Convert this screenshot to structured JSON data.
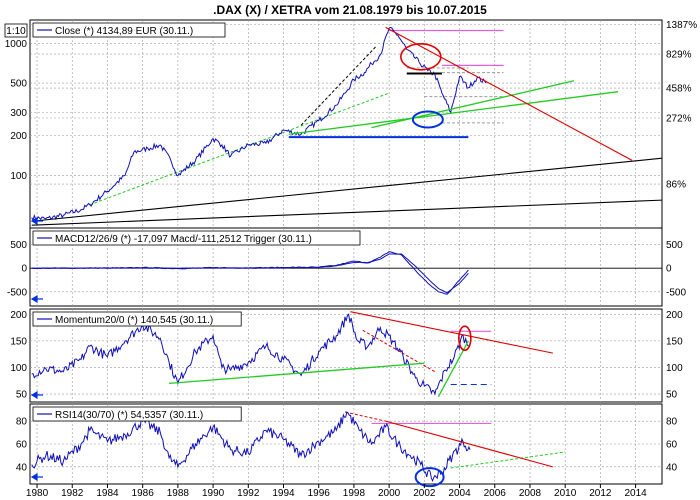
{
  "title": ".DAX (X) / XETRA vom 21.08.1979 bis 10.07.2015",
  "scale_label": "1:10",
  "colors": {
    "price": "#1010b8",
    "dashed_gray": "#9a9a9a",
    "red": "#e00000",
    "green": "#22cc22",
    "magenta": "#e060e0",
    "blue_mark": "#0030e0",
    "black": "#000000",
    "bg": "#ffffff"
  },
  "icons": {
    "panel_arrow": "arrow-left-icon",
    "circle_mark": "ellipse-annotation-icon"
  },
  "chart_data": [
    {
      "id": "price",
      "type": "line",
      "legend": "Close (*) 4134,89 EUR (30.11.)",
      "y_scale": "log",
      "ylim": [
        40,
        1500
      ],
      "xlim": [
        1979.6,
        2015.5
      ],
      "left_ticks": [
        {
          "v": 1000,
          "label": "1000"
        },
        {
          "v": 500,
          "label": "500"
        },
        {
          "v": 300,
          "label": "300"
        },
        {
          "v": 200,
          "label": "200"
        },
        {
          "v": 100,
          "label": "100"
        }
      ],
      "right_ticks": [
        {
          "v": 1387,
          "label": "1387%"
        },
        {
          "v": 829,
          "label": "829%"
        },
        {
          "v": 458,
          "label": "458%"
        },
        {
          "v": 272,
          "label": "272%"
        },
        {
          "v": 86,
          "label": "86%"
        }
      ],
      "x": [
        1979.7,
        1980.5,
        1981.5,
        1982.5,
        1983.0,
        1984.0,
        1985.0,
        1985.5,
        1986.3,
        1987.0,
        1987.6,
        1988.0,
        1989.0,
        1990.0,
        1990.5,
        1991.0,
        1992.0,
        1993.0,
        1994.0,
        1995.0,
        1996.0,
        1997.0,
        1997.5,
        1998.0,
        1998.6,
        1999.0,
        1999.5,
        2000.0,
        2000.5,
        2001.0,
        2001.7,
        2002.2,
        2002.6,
        2003.0,
        2003.5,
        2004.0,
        2004.5,
        2005.0,
        2005.5
      ],
      "y": [
        48,
        47,
        50,
        55,
        60,
        76,
        100,
        150,
        160,
        170,
        130,
        100,
        130,
        190,
        170,
        140,
        170,
        175,
        220,
        205,
        260,
        340,
        420,
        530,
        600,
        700,
        820,
        1300,
        1150,
        900,
        720,
        620,
        580,
        420,
        300,
        560,
        460,
        550,
        500
      ],
      "annotations": {
        "pink_h": [
          {
            "x0": 2000.0,
            "x1": 2006.5,
            "y": 1250
          },
          {
            "x0": 2003.0,
            "x1": 2006.5,
            "y": 680
          }
        ],
        "gray_h": [
          {
            "x0": 2001.0,
            "x1": 2004.5,
            "y": 650
          },
          {
            "x0": 2003.0,
            "x1": 2006.5,
            "y": 600
          },
          {
            "x0": 2002.0,
            "x1": 2006.5,
            "y": 395
          },
          {
            "x0": 2003.0,
            "x1": 2006.5,
            "y": 250
          }
        ],
        "blue_h": [
          {
            "x0": 1994.3,
            "x1": 2004.5,
            "y": 195
          }
        ],
        "black_h": [
          {
            "x0": 2001.0,
            "x1": 2003.0,
            "y": 590
          }
        ],
        "red_lines": [
          {
            "x0": 1999.8,
            "y0": 1320,
            "x1": 2013.8,
            "y1": 130
          }
        ],
        "green_lines": [
          {
            "x0": 1999.0,
            "y0": 230,
            "x1": 2010.5,
            "y1": 520
          },
          {
            "x0": 1994.3,
            "y0": 205,
            "x1": 2013.0,
            "y1": 430
          }
        ],
        "green_dash": [
          {
            "x0": 1983.0,
            "y0": 60,
            "x1": 2000.0,
            "y1": 420
          }
        ],
        "black_long": [
          {
            "x0": 1979.7,
            "y0": 45,
            "x1": 2015.5,
            "y1": 135
          },
          {
            "x0": 1979.7,
            "y0": 42,
            "x1": 2015.5,
            "y1": 65
          }
        ],
        "black_dash": [
          {
            "x0": 1995.0,
            "y0": 240,
            "x1": 1999.3,
            "y1": 960
          }
        ],
        "red_ellipses": [
          {
            "x": 2001.8,
            "y": 790,
            "rx": 20,
            "ry": 13
          }
        ],
        "blue_ellipses": [
          {
            "x": 2002.2,
            "y": 265,
            "rx": 15,
            "ry": 8
          }
        ]
      }
    },
    {
      "id": "macd",
      "type": "line",
      "legend": "MACD12/26/9 (*) -17,097 Macd/-111,2512 Trigger (30.11.)",
      "ylim": [
        -800,
        850
      ],
      "xlim": [
        1979.6,
        2015.5
      ],
      "ticks": [
        {
          "v": 500,
          "label": "500"
        },
        {
          "v": 0,
          "label": "0"
        },
        {
          "v": -500,
          "label": "-500"
        }
      ],
      "x": [
        1979.7,
        1982,
        1985,
        1986,
        1988,
        1990,
        1992,
        1994,
        1996,
        1997,
        1998,
        1998.8,
        1999.5,
        2000.0,
        2000.7,
        2001.5,
        2002.2,
        2002.8,
        2003.3,
        2004.0,
        2004.5
      ],
      "macd": [
        0,
        2,
        5,
        12,
        -8,
        10,
        5,
        15,
        20,
        60,
        150,
        110,
        230,
        350,
        280,
        -50,
        -320,
        -500,
        -550,
        -250,
        -40
      ],
      "trigger": [
        0,
        1,
        4,
        8,
        -4,
        8,
        5,
        12,
        18,
        50,
        120,
        120,
        190,
        300,
        300,
        40,
        -220,
        -430,
        -520,
        -320,
        -110
      ]
    },
    {
      "id": "momentum",
      "type": "line",
      "legend": "Momentum20/0 (*) 140,545 (30.11.)",
      "ylim": [
        35,
        210
      ],
      "xlim": [
        1979.6,
        2015.5
      ],
      "ticks": [
        {
          "v": 200,
          "label": "200"
        },
        {
          "v": 150,
          "label": "150"
        },
        {
          "v": 100,
          "label": "100"
        },
        {
          "v": 50,
          "label": "50"
        }
      ],
      "x": [
        1979.7,
        1980.5,
        1981.5,
        1982.5,
        1983.0,
        1984.0,
        1985.0,
        1986.0,
        1987.0,
        1987.5,
        1988.0,
        1989.0,
        1990.0,
        1990.5,
        1991.0,
        1992.0,
        1993.0,
        1994.0,
        1995.0,
        1996.0,
        1997.0,
        1997.7,
        1998.2,
        1998.8,
        1999.5,
        2000.2,
        2000.8,
        2001.5,
        2002.0,
        2002.6,
        2003.2,
        2003.7,
        2004.2,
        2004.5
      ],
      "y": [
        88,
        98,
        92,
        115,
        140,
        120,
        150,
        180,
        155,
        110,
        70,
        130,
        160,
        100,
        95,
        110,
        140,
        115,
        85,
        130,
        160,
        200,
        150,
        140,
        175,
        150,
        120,
        80,
        65,
        50,
        95,
        120,
        160,
        140
      ],
      "annotations": {
        "red_lines": [
          {
            "x0": 1997.8,
            "y0": 205,
            "x1": 2009.3,
            "y1": 127
          }
        ],
        "red_dash": [
          {
            "x0": 1998.5,
            "y0": 170,
            "x1": 2002.6,
            "y1": 92
          }
        ],
        "green_lines": [
          {
            "x0": 1987.5,
            "y0": 70,
            "x1": 2002.0,
            "y1": 108
          },
          {
            "x0": 2002.8,
            "y0": 45,
            "x1": 2004.5,
            "y1": 150
          }
        ],
        "pink_h": [
          {
            "x0": 2003.5,
            "x1": 2005.8,
            "y": 168
          }
        ],
        "blue_dash": [
          {
            "x0": 2003.5,
            "x1": 2005.8,
            "y": 68
          }
        ],
        "red_ellipses": [
          {
            "x": 2004.3,
            "y": 155,
            "rx": 6,
            "ry": 12
          }
        ]
      }
    },
    {
      "id": "rsi",
      "type": "line",
      "legend": "RSI14(30/70) (*) 54,5357 (30.11.)",
      "ylim": [
        25,
        95
      ],
      "xlim": [
        1979.6,
        2015.5
      ],
      "ticks": [
        {
          "v": 80,
          "label": "80"
        },
        {
          "v": 60,
          "label": "60"
        },
        {
          "v": 40,
          "label": "40"
        }
      ],
      "x": [
        1979.7,
        1980.5,
        1981.5,
        1982.5,
        1983.0,
        1984.0,
        1985.0,
        1986.0,
        1987.0,
        1987.5,
        1988.0,
        1989.0,
        1990.0,
        1991.0,
        1992.0,
        1993.0,
        1994.0,
        1995.0,
        1996.0,
        1997.0,
        1997.6,
        1998.3,
        1999.0,
        1999.8,
        2000.5,
        2001.2,
        2001.8,
        2002.4,
        2003.0,
        2003.6,
        2004.2,
        2004.6
      ],
      "y": [
        42,
        50,
        45,
        60,
        72,
        62,
        68,
        80,
        70,
        48,
        40,
        60,
        75,
        55,
        52,
        72,
        64,
        50,
        62,
        72,
        88,
        72,
        60,
        75,
        60,
        50,
        42,
        30,
        35,
        50,
        62,
        55
      ],
      "annotations": {
        "red_lines": [
          {
            "x0": 1999.8,
            "y0": 80,
            "x1": 2009.3,
            "y1": 40
          }
        ],
        "red_dash": [
          {
            "x0": 1997.5,
            "y0": 88,
            "x1": 1999.8,
            "y1": 80
          }
        ],
        "pink_h": [
          {
            "x0": 1999.0,
            "x1": 2005.8,
            "y": 78
          }
        ],
        "green_dash": [
          {
            "x0": 2003.5,
            "y0": 39,
            "x1": 2010.0,
            "y1": 53
          }
        ],
        "blue_ellipses": [
          {
            "x": 2002.3,
            "y": 31,
            "rx": 14,
            "ry": 9
          }
        ]
      }
    }
  ],
  "x_axis": {
    "ticks": [
      1980,
      1982,
      1984,
      1986,
      1988,
      1990,
      1992,
      1994,
      1996,
      1998,
      2000,
      2002,
      2004,
      2006,
      2008,
      2010,
      2012,
      2014
    ],
    "labels": [
      "1980",
      "1982",
      "1984",
      "1986",
      "1988",
      "1990",
      "1992",
      "1994",
      "1996",
      "1998",
      "2000",
      "2002",
      "2004",
      "2006",
      "2008",
      "2010",
      "2012",
      "2014"
    ]
  }
}
